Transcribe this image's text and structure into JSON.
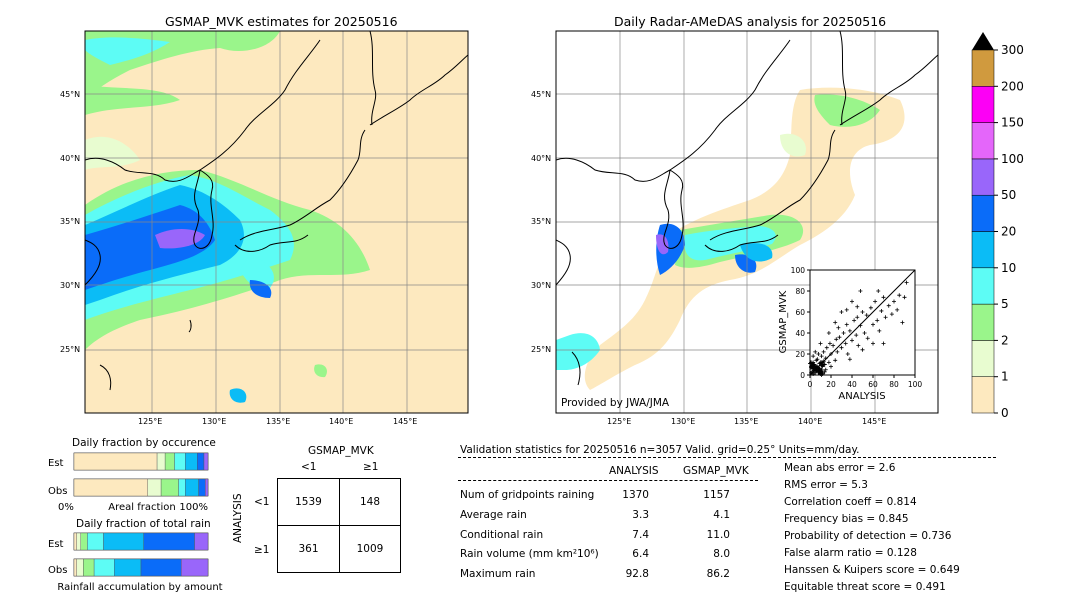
{
  "left_map": {
    "title": "GSMAP_MVK estimates for 20250516",
    "lon_labels": [
      "125°E",
      "130°E",
      "135°E",
      "140°E",
      "145°E"
    ],
    "lat_labels": [
      "45°N",
      "40°N",
      "35°N",
      "30°N",
      "25°N"
    ]
  },
  "right_map": {
    "title": "Daily Radar-AMeDAS analysis for 20250516",
    "lon_labels": [
      "125°E",
      "130°E",
      "135°E",
      "140°E",
      "145°E"
    ],
    "lat_labels": [
      "45°N",
      "40°N",
      "35°N",
      "30°N",
      "25°N"
    ],
    "credit": "Provided by JWA/JMA"
  },
  "colorbar": {
    "levels": [
      "0",
      "1",
      "2",
      "5",
      "10",
      "20",
      "50",
      "100",
      "150",
      "200",
      "300"
    ],
    "colors": [
      "#fde9bf",
      "#e8fcd0",
      "#9af58b",
      "#5dfcf5",
      "#0bbcf6",
      "#0a6cf9",
      "#9966fa",
      "#e466fa",
      "#fc00f5",
      "#d09a3e",
      "#000000"
    ]
  },
  "chart_data": [
    {
      "type": "scatter",
      "xlabel": "ANALYSIS",
      "ylabel": "GSMAP_MVK",
      "xlim": [
        0,
        100
      ],
      "ylim": [
        0,
        100
      ],
      "x_ticks": [
        "0",
        "20",
        "40",
        "60",
        "80",
        "100"
      ],
      "y_ticks": [
        "0",
        "20",
        "40",
        "60",
        "80",
        "100"
      ],
      "points": [
        [
          2,
          3
        ],
        [
          3,
          6
        ],
        [
          5,
          2
        ],
        [
          4,
          10
        ],
        [
          6,
          8
        ],
        [
          8,
          4
        ],
        [
          1,
          12
        ],
        [
          7,
          15
        ],
        [
          9,
          6
        ],
        [
          10,
          12
        ],
        [
          12,
          8
        ],
        [
          3,
          18
        ],
        [
          5,
          22
        ],
        [
          11,
          18
        ],
        [
          14,
          10
        ],
        [
          13,
          22
        ],
        [
          15,
          16
        ],
        [
          16,
          26
        ],
        [
          18,
          12
        ],
        [
          20,
          20
        ],
        [
          22,
          28
        ],
        [
          19,
          30
        ],
        [
          24,
          14
        ],
        [
          25,
          34
        ],
        [
          26,
          22
        ],
        [
          28,
          36
        ],
        [
          30,
          26
        ],
        [
          32,
          40
        ],
        [
          27,
          45
        ],
        [
          34,
          30
        ],
        [
          35,
          48
        ],
        [
          36,
          20
        ],
        [
          38,
          42
        ],
        [
          40,
          33
        ],
        [
          42,
          52
        ],
        [
          44,
          38
        ],
        [
          45,
          55
        ],
        [
          46,
          28
        ],
        [
          48,
          47
        ],
        [
          50,
          60
        ],
        [
          52,
          40
        ],
        [
          54,
          57
        ],
        [
          55,
          35
        ],
        [
          58,
          64
        ],
        [
          60,
          48
        ],
        [
          62,
          70
        ],
        [
          64,
          52
        ],
        [
          66,
          42
        ],
        [
          68,
          61
        ],
        [
          70,
          74
        ],
        [
          72,
          55
        ],
        [
          75,
          66
        ],
        [
          78,
          58
        ],
        [
          80,
          70
        ],
        [
          83,
          62
        ],
        [
          85,
          76
        ],
        [
          88,
          50
        ],
        [
          90,
          74
        ],
        [
          92,
          88
        ],
        [
          30,
          60
        ],
        [
          24,
          50
        ],
        [
          18,
          40
        ],
        [
          40,
          70
        ],
        [
          60,
          30
        ],
        [
          48,
          80
        ],
        [
          35,
          62
        ],
        [
          65,
          80
        ],
        [
          10,
          30
        ],
        [
          8,
          20
        ],
        [
          6,
          14
        ],
        [
          4,
          4
        ],
        [
          2,
          8
        ],
        [
          1,
          2
        ],
        [
          3,
          1
        ],
        [
          15,
          5
        ],
        [
          20,
          8
        ],
        [
          38,
          15
        ],
        [
          50,
          24
        ],
        [
          70,
          30
        ],
        [
          45,
          65
        ]
      ],
      "reference_line": "y=x"
    },
    {
      "type": "bar",
      "title": "Daily fraction by occurence",
      "categories": [
        "Est",
        "Obs"
      ],
      "xlabel": "Areal fraction",
      "x_ticks": [
        "0%",
        "100%"
      ],
      "series": [
        {
          "color": "#fde9bf",
          "values": [
            0.62,
            0.55
          ]
        },
        {
          "color": "#e8fcd0",
          "values": [
            0.06,
            0.1
          ]
        },
        {
          "color": "#9af58b",
          "values": [
            0.07,
            0.13
          ]
        },
        {
          "color": "#5dfcf5",
          "values": [
            0.08,
            0.05
          ]
        },
        {
          "color": "#0bbcf6",
          "values": [
            0.09,
            0.1
          ]
        },
        {
          "color": "#0a6cf9",
          "values": [
            0.05,
            0.05
          ]
        },
        {
          "color": "#9966fa",
          "values": [
            0.03,
            0.02
          ]
        }
      ]
    },
    {
      "type": "bar",
      "title": "Daily fraction of total rain",
      "categories": [
        "Est",
        "Obs"
      ],
      "xlabel": "Rainfall accumulation by amount",
      "series": [
        {
          "color": "#fde9bf",
          "values": [
            0.02,
            0.02
          ]
        },
        {
          "color": "#e8fcd0",
          "values": [
            0.03,
            0.05
          ]
        },
        {
          "color": "#9af58b",
          "values": [
            0.05,
            0.08
          ]
        },
        {
          "color": "#5dfcf5",
          "values": [
            0.12,
            0.15
          ]
        },
        {
          "color": "#0bbcf6",
          "values": [
            0.3,
            0.2
          ]
        },
        {
          "color": "#0a6cf9",
          "values": [
            0.38,
            0.3
          ]
        },
        {
          "color": "#9966fa",
          "values": [
            0.1,
            0.2
          ]
        }
      ]
    },
    {
      "type": "table",
      "title": "GSMAP_MVK",
      "column_labels": [
        "<1",
        "≥1"
      ],
      "row_axis_label": "ANALYSIS",
      "row_labels": [
        "<1",
        "≥1"
      ],
      "cells": [
        [
          "1539",
          "148"
        ],
        [
          "361",
          "1009"
        ]
      ]
    }
  ],
  "stats": {
    "header": "Validation statistics for 20250516  n=3057 Valid. grid=0.25° Units=mm/day.",
    "col_analysis": "ANALYSIS",
    "col_gsmap": "GSMAP_MVK",
    "rows": [
      {
        "label": "Num of gridpoints raining",
        "analysis": "1370",
        "gsmap": "1157"
      },
      {
        "label": "Average rain",
        "analysis": "3.3",
        "gsmap": "4.1"
      },
      {
        "label": "Conditional rain",
        "analysis": "7.4",
        "gsmap": "11.0"
      },
      {
        "label": "Rain volume (mm km²10⁶)",
        "analysis": "6.4",
        "gsmap": "8.0"
      },
      {
        "label": "Maximum rain",
        "analysis": "92.8",
        "gsmap": "86.2"
      }
    ],
    "scores": [
      "Mean abs error =    2.6",
      "RMS error =    5.3",
      "Correlation coeff =  0.814",
      "Frequency bias =  0.845",
      "Probability of detection =  0.736",
      "False alarm ratio =  0.128",
      "Hanssen & Kuipers score =  0.649",
      "Equitable threat score =  0.491"
    ]
  }
}
